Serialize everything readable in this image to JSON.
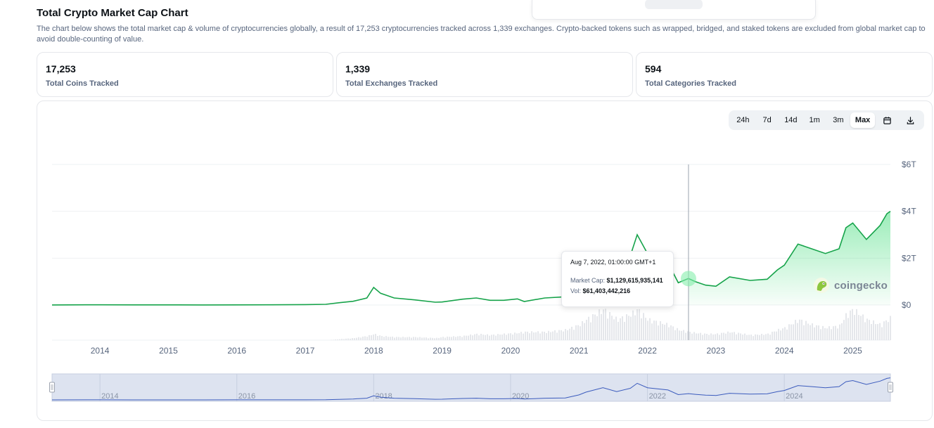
{
  "header": {
    "title": "Total Crypto Market Cap Chart",
    "description": "The chart below shows the total market cap & volume of cryptocurrencies globally, a result of 17,253 cryptocurrencies tracked across 1,339 exchanges. Crypto-backed tokens such as wrapped, bridged, and staked tokens are excluded from global market cap to avoid double-counting of value."
  },
  "stats": [
    {
      "value": "17,253",
      "label": "Total Coins Tracked"
    },
    {
      "value": "1,339",
      "label": "Total Exchanges Tracked"
    },
    {
      "value": "594",
      "label": "Total Categories Tracked"
    }
  ],
  "range_buttons": [
    {
      "label": "24h",
      "active": false
    },
    {
      "label": "7d",
      "active": false
    },
    {
      "label": "14d",
      "active": false
    },
    {
      "label": "1m",
      "active": false
    },
    {
      "label": "3m",
      "active": false
    },
    {
      "label": "Max",
      "active": true
    }
  ],
  "icons": {
    "calendar": "calendar-icon",
    "download": "download-icon",
    "brand": "gecko-logo-icon"
  },
  "tooltip": {
    "date": "Aug 7, 2022, 01:00:00 GMT+1",
    "market_cap_label": "Market Cap:",
    "market_cap_value": "$1,129,615,935,141",
    "volume_label": "Vol:",
    "volume_value": "$61,403,442,216"
  },
  "watermark": "coingecko",
  "colors": {
    "line": "#16a34a",
    "area_top": "#4ade80",
    "volume": "#d1d5db",
    "navigator_fill": "#dde3f0",
    "navigator_line": "#3b5bbd",
    "brand": "#8dc63f"
  },
  "chart_data": {
    "type": "area",
    "x_unit": "year",
    "x": [
      2013.3,
      2013.8,
      2014.0,
      2014.5,
      2015.0,
      2015.5,
      2016.0,
      2016.5,
      2017.0,
      2017.3,
      2017.5,
      2017.7,
      2017.9,
      2018.0,
      2018.1,
      2018.3,
      2018.6,
      2018.9,
      2019.0,
      2019.3,
      2019.5,
      2019.7,
      2019.9,
      2020.1,
      2020.2,
      2020.5,
      2020.8,
      2021.0,
      2021.1,
      2021.35,
      2021.55,
      2021.75,
      2021.85,
      2022.0,
      2022.3,
      2022.45,
      2022.6,
      2022.7,
      2022.85,
      2023.0,
      2023.2,
      2023.5,
      2023.75,
      2023.9,
      2024.0,
      2024.2,
      2024.4,
      2024.6,
      2024.8,
      2024.9,
      2025.0,
      2025.2,
      2025.4,
      2025.5,
      2025.55
    ],
    "series": [
      {
        "values": [
          0.003,
          0.01,
          0.01,
          0.006,
          0.006,
          0.004,
          0.007,
          0.01,
          0.018,
          0.03,
          0.1,
          0.16,
          0.3,
          0.75,
          0.5,
          0.3,
          0.22,
          0.12,
          0.13,
          0.25,
          0.3,
          0.2,
          0.2,
          0.26,
          0.15,
          0.3,
          0.35,
          0.9,
          1.4,
          2.2,
          1.5,
          2.1,
          3.0,
          2.2,
          1.8,
          0.95,
          1.13,
          1.0,
          0.85,
          0.8,
          1.2,
          1.05,
          1.1,
          1.5,
          1.7,
          2.6,
          2.4,
          2.2,
          2.4,
          3.3,
          3.5,
          2.8,
          3.4,
          3.9,
          4.0
        ]
      },
      {
        "values": [
          0.0,
          0.0,
          0.0,
          0.0,
          0.0,
          0.0,
          0.0,
          0.0,
          0.0,
          0.0,
          0.01,
          0.02,
          0.04,
          0.06,
          0.04,
          0.03,
          0.03,
          0.02,
          0.03,
          0.04,
          0.06,
          0.05,
          0.06,
          0.07,
          0.08,
          0.08,
          0.1,
          0.15,
          0.2,
          0.3,
          0.2,
          0.25,
          0.3,
          0.2,
          0.15,
          0.1,
          0.08,
          0.07,
          0.06,
          0.06,
          0.08,
          0.05,
          0.06,
          0.1,
          0.12,
          0.2,
          0.15,
          0.12,
          0.14,
          0.25,
          0.3,
          0.2,
          0.15,
          0.2,
          0.22
        ]
      }
    ],
    "x_ticks": [
      "2014",
      "2015",
      "2016",
      "2017",
      "2018",
      "2019",
      "2020",
      "2021",
      "2022",
      "2023",
      "2024",
      "2025"
    ],
    "y_ticks": [
      "$0",
      "$2T",
      "$4T",
      "$6T"
    ],
    "ylim": [
      0,
      6
    ],
    "navigator_ticks": [
      "2014",
      "2016",
      "2018",
      "2020",
      "2022",
      "2024"
    ],
    "hover_point": {
      "x": 2022.6,
      "y": 1.13
    },
    "grid": true
  }
}
